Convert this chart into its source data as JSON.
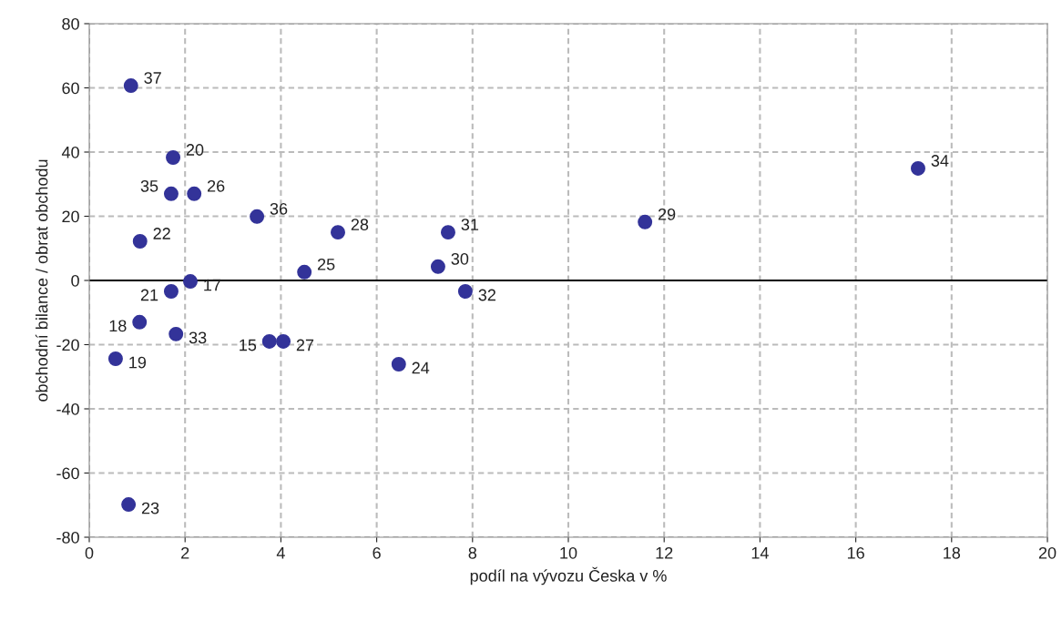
{
  "chart_data": {
    "type": "scatter",
    "xlabel": "podíl na vývozu Česka v %",
    "ylabel": "obchodní bilance / obrat obchodu",
    "x": [
      0.87,
      1.75,
      1.71,
      2.19,
      3.5,
      5.19,
      7.49,
      11.6,
      17.3,
      1.06,
      4.49,
      7.28,
      2.11,
      1.71,
      7.85,
      1.05,
      1.81,
      3.76,
      4.05,
      0.55,
      6.46,
      0.82
    ],
    "series": [
      {
        "color": "#333399",
        "values": [
          60.7,
          38.3,
          27,
          27,
          19.9,
          15,
          15,
          18.2,
          34.9,
          12.2,
          2.6,
          4.3,
          -0.3,
          -3.4,
          -3.4,
          -13,
          -16.7,
          -19,
          -19,
          -24.4,
          -26.1,
          -69.8
        ]
      }
    ],
    "annotations": [
      {
        "text": "37",
        "x": 0.87,
        "y": 60.7
      },
      {
        "text": "20",
        "x": 1.75,
        "y": 38.3
      },
      {
        "text": "35",
        "x": 1.71,
        "y": 27
      },
      {
        "text": "26",
        "x": 2.19,
        "y": 27
      },
      {
        "text": "36",
        "x": 3.5,
        "y": 19.9
      },
      {
        "text": "28",
        "x": 5.19,
        "y": 15
      },
      {
        "text": "31",
        "x": 7.49,
        "y": 15
      },
      {
        "text": "29",
        "x": 11.6,
        "y": 18.2
      },
      {
        "text": "34",
        "x": 17.3,
        "y": 34.9
      },
      {
        "text": "22",
        "x": 1.06,
        "y": 12.2
      },
      {
        "text": "25",
        "x": 4.49,
        "y": 2.6
      },
      {
        "text": "30",
        "x": 7.28,
        "y": 4.3
      },
      {
        "text": "17",
        "x": 2.11,
        "y": -0.3
      },
      {
        "text": "21",
        "x": 1.71,
        "y": -3.4
      },
      {
        "text": "32",
        "x": 7.85,
        "y": -3.4
      },
      {
        "text": "18",
        "x": 1.05,
        "y": -13
      },
      {
        "text": "33",
        "x": 1.81,
        "y": -16.7
      },
      {
        "text": "15",
        "x": 3.76,
        "y": -19
      },
      {
        "text": "27",
        "x": 4.05,
        "y": -19
      },
      {
        "text": "19",
        "x": 0.55,
        "y": -24.4
      },
      {
        "text": "24",
        "x": 6.46,
        "y": -26.1
      },
      {
        "text": "23",
        "x": 0.82,
        "y": -69.8
      }
    ],
    "xlim": [
      0,
      20
    ],
    "xticks": [
      0,
      2,
      4,
      6,
      8,
      10,
      12,
      14,
      16,
      18,
      20
    ],
    "ylim": [
      -80,
      80
    ],
    "yticks": [
      -80,
      -60,
      -40,
      -20,
      0,
      20,
      40,
      60,
      80
    ],
    "ref_lines": [
      {
        "axis": "y",
        "value": 0,
        "color": "#000000",
        "line_style": "solid"
      }
    ],
    "grid": true,
    "marker": "circle"
  }
}
